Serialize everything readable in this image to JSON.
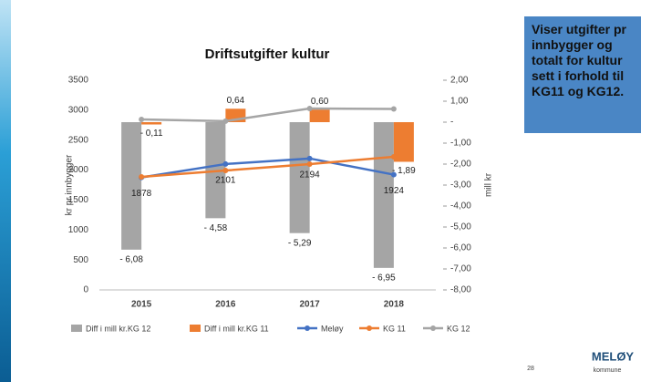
{
  "chart_data": {
    "type": "combo",
    "title": "Driftsutgifter kultur",
    "y_label": "kr pr innbygger",
    "y2_label": "mill kr",
    "categories": [
      "2015",
      "2016",
      "2017",
      "2018"
    ],
    "ylim": [
      0,
      3500
    ],
    "yticks": [
      0,
      500,
      1000,
      1500,
      2000,
      2500,
      3000,
      3500
    ],
    "y2lim": [
      -8,
      2
    ],
    "y2ticks": [
      {
        "value": -8,
        "label": "-8,00"
      },
      {
        "value": -7,
        "label": "-7,00"
      },
      {
        "value": -6,
        "label": "-6,00"
      },
      {
        "value": -5,
        "label": "-5,00"
      },
      {
        "value": -4,
        "label": "-4,00"
      },
      {
        "value": -3,
        "label": "-3,00"
      },
      {
        "value": -2,
        "label": "-2,00"
      },
      {
        "value": -1,
        "label": "-1,00"
      },
      {
        "value": 0,
        "label": "-"
      },
      {
        "value": 1,
        "label": "1,00"
      },
      {
        "value": 2,
        "label": "2,00"
      }
    ],
    "series": [
      {
        "name": "Diff i mill kr.KG 12",
        "type": "bar",
        "axis": "y2",
        "color": "#a5a5a5",
        "values": [
          -6.08,
          -4.58,
          -5.29,
          -6.95
        ],
        "value_labels": [
          "- 6,08",
          "- 4,58",
          "- 5,29",
          "- 6,95"
        ]
      },
      {
        "name": "Diff i mill kr.KG 11",
        "type": "bar",
        "axis": "y2",
        "color": "#ed7d31",
        "values": [
          -0.11,
          0.64,
          0.6,
          -1.89
        ],
        "value_labels": [
          "- 0,11",
          "0,64",
          "0,60",
          "- 1,89"
        ]
      },
      {
        "name": "Meløy",
        "type": "line",
        "color": "#4472c4",
        "values": [
          1878,
          2101,
          2194,
          1924
        ]
      },
      {
        "name": "KG 11",
        "type": "line",
        "color": "#ed7d31",
        "values": [
          1887,
          1993,
          2100,
          2222
        ]
      },
      {
        "name": "KG 12",
        "type": "line",
        "color": "#a5a5a5",
        "values": [
          2846,
          2818,
          3028,
          3020
        ]
      }
    ]
  },
  "sidebar": {
    "text": "Viser utgifter pr innbygger og totalt for kultur sett i forhold til KG11 og KG12."
  },
  "footer": {
    "page": "28",
    "logo": "MELØY",
    "logo_sub": "kommune"
  }
}
